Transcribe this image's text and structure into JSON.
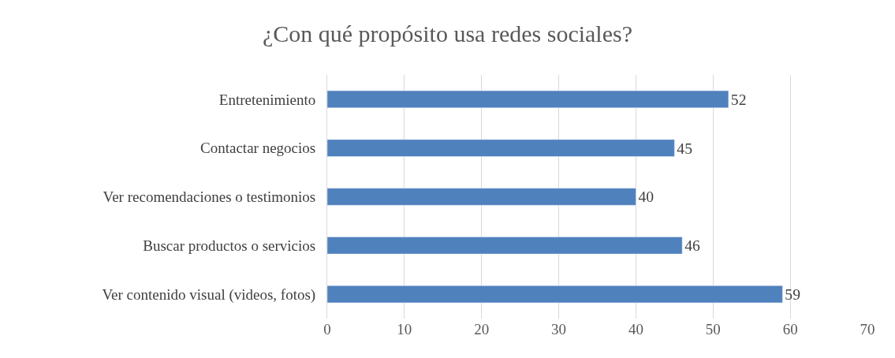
{
  "chart_data": {
    "type": "bar",
    "orientation": "horizontal",
    "title": "¿Con qué propósito usa redes sociales?",
    "categories": [
      "Entretenimiento",
      "Contactar negocios",
      "Ver recomendaciones o testimonios",
      "Buscar productos o servicios",
      "Ver contenido visual (videos, fotos)"
    ],
    "values": [
      52,
      45,
      40,
      46,
      59
    ],
    "color": "#4f81bd",
    "xlim": [
      0,
      70
    ],
    "xticks": [
      0,
      10,
      20,
      30,
      40,
      50,
      60,
      70
    ],
    "grid": "x",
    "data_labels": true
  }
}
